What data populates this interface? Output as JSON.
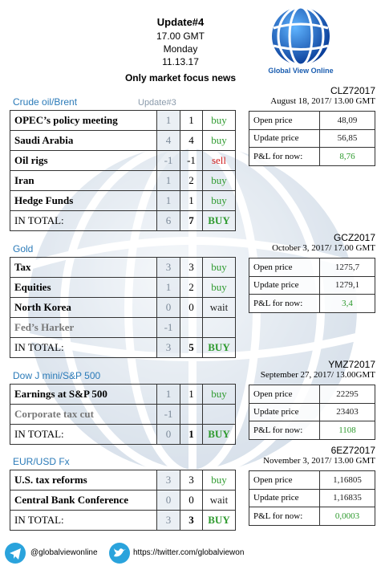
{
  "header": {
    "title": "Update#4",
    "time": "17.00 GMT",
    "day": "Monday",
    "date": "11.13.17",
    "subtitle": "Only market focus news",
    "logo_text": "Global View Online"
  },
  "sections": [
    {
      "name": "Crude oil/Brent",
      "previous": "Update#3",
      "rows": [
        {
          "label": "OPEC’s policy meeting",
          "previous": "1",
          "current": "1",
          "signal": "buy",
          "signal_color": "#2e9a2e"
        },
        {
          "label": "Saudi Arabia",
          "previous": "4",
          "current": "4",
          "signal": "buy",
          "signal_color": "#2e9a2e"
        },
        {
          "label": "Oil rigs",
          "previous": "-1",
          "current": "-1",
          "signal": "sell",
          "signal_color": "#d02020"
        },
        {
          "label": "Iran",
          "previous": "1",
          "current": "2",
          "signal": "buy",
          "signal_color": "#2e9a2e"
        },
        {
          "label": "Hedge Funds",
          "previous": "1",
          "current": "1",
          "signal": "buy",
          "signal_color": "#2e9a2e"
        }
      ],
      "total": {
        "label": "IN TOTAL:",
        "previous": "6",
        "current": "7",
        "signal": "BUY",
        "signal_color": "#2e9a2e"
      },
      "ticker": "CLZ72017",
      "date": "August 18, 2017/ 13.00 GMT",
      "pnl": [
        {
          "label": "Open price",
          "value": "48,09"
        },
        {
          "label": "Update price",
          "value": "56,85"
        },
        {
          "label": "P&L for now:",
          "value": "8,76",
          "color": "#2e9a2e"
        }
      ]
    },
    {
      "name": "Gold",
      "rows": [
        {
          "label": "Tax",
          "previous": "3",
          "current": "3",
          "signal": "buy",
          "signal_color": "#2e9a2e"
        },
        {
          "label": "Equities",
          "previous": "1",
          "current": "2",
          "signal": "buy",
          "signal_color": "#2e9a2e"
        },
        {
          "label": "North Korea",
          "previous": "0",
          "current": "0",
          "signal": "wait",
          "signal_color": "#222222"
        },
        {
          "label": "Fed’s Harker",
          "previous": "-1",
          "label_color": "#777777"
        }
      ],
      "total": {
        "label": "IN TOTAL:",
        "previous": "3",
        "current": "5",
        "signal": "BUY",
        "signal_color": "#2e9a2e"
      },
      "ticker": "GCZ2017",
      "date": "October 3, 2017/ 17.00 GMT",
      "pnl": [
        {
          "label": "Open price",
          "value": "1275,7"
        },
        {
          "label": "Update price",
          "value": "1279,1"
        },
        {
          "label": "P&L for now:",
          "value": "3,4",
          "color": "#2e9a2e"
        }
      ]
    },
    {
      "name": "Dow J mini/S&P 500",
      "rows": [
        {
          "label": "Earnings at S&P 500",
          "previous": "1",
          "current": "1",
          "signal": "buy",
          "signal_color": "#2e9a2e"
        },
        {
          "label": "Corporate tax cut",
          "previous": "-1",
          "label_color": "#777777"
        }
      ],
      "total": {
        "label": "IN TOTAL:",
        "previous": "0",
        "current": "1",
        "signal": "BUY",
        "signal_color": "#2e9a2e"
      },
      "ticker": "YMZ72017",
      "date": "September 27, 2017/ 13.00GMT",
      "pnl": [
        {
          "label": "Open price",
          "value": "22295"
        },
        {
          "label": "Update price",
          "value": "23403"
        },
        {
          "label": "P&L for now:",
          "value": "1108",
          "color": "#2e9a2e"
        }
      ]
    },
    {
      "name": "EUR/USD Fx",
      "rows": [
        {
          "label": "U.S. tax reforms",
          "previous": "3",
          "current": "3",
          "signal": "buy",
          "signal_color": "#2e9a2e"
        },
        {
          "label": "Central Bank Conference",
          "previous": "0",
          "current": "0",
          "signal": "wait",
          "signal_color": "#222222"
        }
      ],
      "total": {
        "label": "IN TOTAL:",
        "previous": "3",
        "current": "3",
        "signal": "BUY",
        "signal_color": "#2e9a2e"
      },
      "ticker": "6EZ72017",
      "date": "November 3, 2017/ 13.00 GMT",
      "pnl": [
        {
          "label": "Open price",
          "value": "1,16805"
        },
        {
          "label": "Update price",
          "value": "1,16835"
        },
        {
          "label": "P&L for now:",
          "value": "0,0003",
          "color": "#2e9a2e"
        }
      ]
    }
  ],
  "footer": {
    "telegram": "@globalviewonline",
    "twitter": "https://twitter.com/globalviewon"
  }
}
